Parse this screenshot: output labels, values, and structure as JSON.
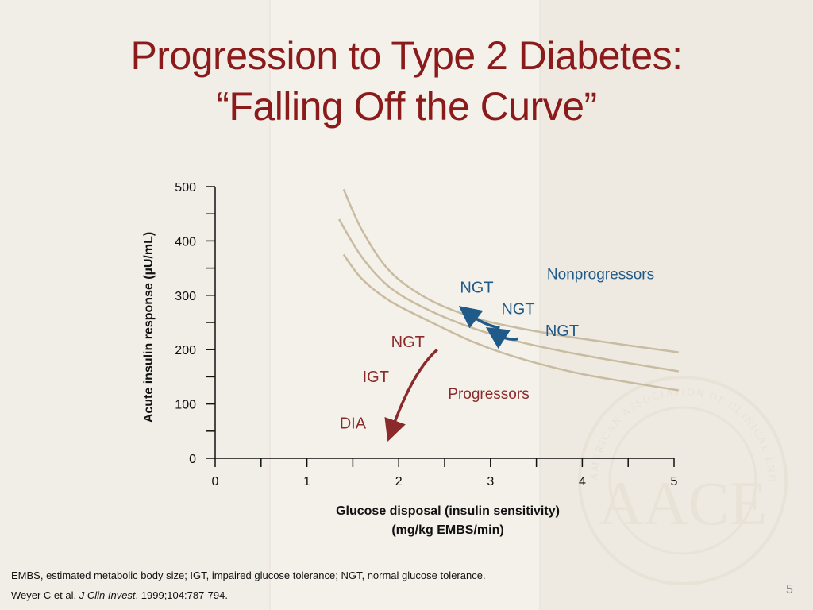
{
  "slide": {
    "title_line1": "Progression to Type 2 Diabetes:",
    "title_line2": "“Falling Off the Curve”",
    "footnote": "EMBS, estimated metabolic body size; IGT, impaired glucose tolerance; NGT, normal glucose tolerance.",
    "citation_authors": "Weyer C et al. ",
    "citation_journal": "J Clin Invest",
    "citation_rest": ". 1999;104:787-794.",
    "page_number": "5",
    "logo_text": "AACE",
    "logo_ring_text": "AMERICAN ASSOCIATION OF CLINICAL ENDOCRINOLOGISTS"
  },
  "colors": {
    "title": "#8b1a1a",
    "curve": "#c8bba0",
    "nonprogressor": "#1f5a88",
    "progressor": "#8b2a2a"
  },
  "chart_data": {
    "type": "line",
    "xlabel_line1": "Glucose disposal (insulin sensitivity)",
    "xlabel_line2": "(mg/kg EMBS/min)",
    "ylabel": "Acute insulin response (µU/mL)",
    "xlim": [
      0,
      5
    ],
    "ylim": [
      0,
      500
    ],
    "x_ticks": [
      0,
      1,
      2,
      3,
      4,
      5
    ],
    "x_tick_labels": [
      "0",
      "1",
      "2",
      "3",
      "4",
      "5"
    ],
    "x_minor_ticks": [
      0.5,
      1.5,
      2.5,
      3.5,
      4.5
    ],
    "y_ticks": [
      0,
      100,
      200,
      300,
      400,
      500
    ],
    "y_tick_labels": [
      "0",
      "100",
      "200",
      "300",
      "400",
      "500"
    ],
    "y_minor_ticks": [
      50,
      150,
      250,
      350,
      450
    ],
    "series": [
      {
        "name": "upper curve",
        "x": [
          1.4,
          1.6,
          1.9,
          2.3,
          2.8,
          3.3,
          4.0,
          5.05
        ],
        "y": [
          495,
          420,
          345,
          295,
          260,
          240,
          220,
          195
        ]
      },
      {
        "name": "middle curve",
        "x": [
          1.35,
          1.6,
          1.9,
          2.3,
          2.8,
          3.3,
          4.0,
          5.05
        ],
        "y": [
          440,
          370,
          315,
          275,
          240,
          215,
          190,
          160
        ]
      },
      {
        "name": "lower curve",
        "x": [
          1.4,
          1.6,
          1.9,
          2.3,
          2.8,
          3.3,
          4.0,
          5.05
        ],
        "y": [
          375,
          330,
          290,
          255,
          215,
          185,
          155,
          125
        ]
      }
    ],
    "annotations": [
      {
        "id": "nonprogressors",
        "text": "Nonprogressors",
        "x": 4.2,
        "y": 330,
        "group": "nonprogressor"
      },
      {
        "id": "ngt-1",
        "text": "NGT",
        "x": 2.85,
        "y": 305,
        "group": "nonprogressor"
      },
      {
        "id": "ngt-2",
        "text": "NGT",
        "x": 3.3,
        "y": 265,
        "group": "nonprogressor"
      },
      {
        "id": "ngt-3",
        "text": "NGT",
        "x": 3.78,
        "y": 225,
        "group": "nonprogressor"
      },
      {
        "id": "ngt-4",
        "text": "NGT",
        "x": 2.1,
        "y": 205,
        "group": "progressor"
      },
      {
        "id": "igt",
        "text": "IGT",
        "x": 1.75,
        "y": 140,
        "group": "progressor"
      },
      {
        "id": "dia",
        "text": "DIA",
        "x": 1.5,
        "y": 55,
        "group": "progressor"
      },
      {
        "id": "progressors",
        "text": "Progressors",
        "x": 2.98,
        "y": 110,
        "group": "progressor"
      }
    ],
    "arrows": [
      {
        "name": "nonprogressor-arrow-upper",
        "group": "nonprogressor",
        "from": [
          3.1,
          240
        ],
        "to": [
          2.75,
          268
        ]
      },
      {
        "name": "nonprogressor-arrow-lower",
        "group": "nonprogressor",
        "from": [
          3.3,
          220
        ],
        "to": [
          3.05,
          230
        ]
      },
      {
        "name": "progressor-arrow",
        "group": "progressor",
        "from": [
          2.42,
          200
        ],
        "to": [
          1.92,
          50
        ],
        "ctrl": [
          2.15,
          160
        ]
      }
    ]
  }
}
